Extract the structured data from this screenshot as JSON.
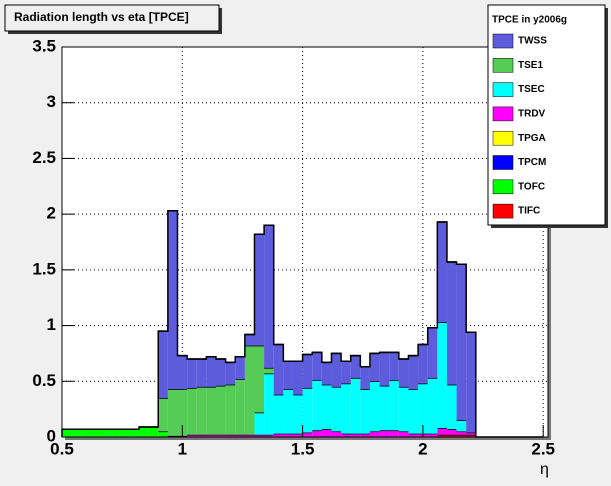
{
  "chart_data": {
    "type": "stacked-histogram",
    "title": "Radiation length vs eta [TPCE]",
    "legend_title": "TPCE in y2006g",
    "x_label": "η",
    "bins": [
      0.5,
      0.54,
      0.58,
      0.62,
      0.66,
      0.7,
      0.74,
      0.78,
      0.82,
      0.86,
      0.9,
      0.94,
      0.98,
      1.02,
      1.06,
      1.1,
      1.14,
      1.18,
      1.22,
      1.26,
      1.3,
      1.34,
      1.38,
      1.42,
      1.46,
      1.5,
      1.54,
      1.58,
      1.62,
      1.66,
      1.7,
      1.74,
      1.78,
      1.82,
      1.86,
      1.9,
      1.94,
      1.98,
      2.02,
      2.06,
      2.1,
      2.14,
      2.18,
      2.22,
      2.26,
      2.3,
      2.34,
      2.38,
      2.42,
      2.46,
      2.5
    ],
    "series": [
      {
        "name": "TWSS",
        "color": "#5c5cdc",
        "values": [
          0,
          0,
          0,
          0,
          0,
          0,
          0,
          0,
          0,
          0,
          0.6,
          1.6,
          0.3,
          0.26,
          0.25,
          0.27,
          0.24,
          0.2,
          0.2,
          0.1,
          1.0,
          1.28,
          0.45,
          0.25,
          0.3,
          0.3,
          0.25,
          0.2,
          0.3,
          0.2,
          0.2,
          0.2,
          0.25,
          0.3,
          0.25,
          0.25,
          0.3,
          0.35,
          0.45,
          0.9,
          1.1,
          1.4,
          0.9,
          0,
          0,
          0,
          0,
          0,
          0,
          0
        ]
      },
      {
        "name": "TSE1",
        "color": "#55cc55",
        "values": [
          0,
          0,
          0,
          0,
          0,
          0,
          0,
          0,
          0,
          0,
          0.3,
          0.42,
          0.42,
          0.42,
          0.43,
          0.43,
          0.44,
          0.45,
          0.5,
          0.8,
          0.6,
          0.05,
          0,
          0,
          0,
          0,
          0,
          0,
          0,
          0,
          0,
          0,
          0,
          0,
          0,
          0,
          0,
          0,
          0,
          0,
          0,
          0,
          0,
          0,
          0,
          0,
          0,
          0,
          0,
          0
        ]
      },
      {
        "name": "TSEC",
        "color": "#00ffff",
        "values": [
          0,
          0,
          0,
          0,
          0,
          0,
          0,
          0,
          0,
          0,
          0,
          0,
          0,
          0,
          0,
          0,
          0,
          0,
          0,
          0,
          0.2,
          0.55,
          0.35,
          0.4,
          0.35,
          0.4,
          0.45,
          0.4,
          0.4,
          0.45,
          0.5,
          0.4,
          0.45,
          0.4,
          0.45,
          0.4,
          0.4,
          0.45,
          0.5,
          0.95,
          0.4,
          0.1,
          0,
          0,
          0,
          0,
          0,
          0,
          0,
          0
        ]
      },
      {
        "name": "TRDV",
        "color": "#ff00ff",
        "values": [
          0,
          0,
          0,
          0,
          0,
          0,
          0,
          0,
          0,
          0,
          0,
          0.01,
          0.01,
          0.02,
          0.02,
          0.02,
          0.02,
          0.02,
          0.02,
          0.02,
          0.02,
          0.02,
          0.03,
          0.03,
          0.03,
          0.04,
          0.06,
          0.07,
          0.05,
          0.03,
          0.03,
          0.03,
          0.05,
          0.06,
          0.06,
          0.05,
          0.03,
          0.03,
          0.03,
          0.06,
          0.05,
          0.03,
          0.02,
          0,
          0,
          0,
          0,
          0,
          0,
          0
        ]
      },
      {
        "name": "TPGA",
        "color": "#ffff00",
        "values": [
          0,
          0,
          0,
          0,
          0,
          0,
          0,
          0,
          0,
          0,
          0,
          0,
          0,
          0,
          0,
          0,
          0,
          0,
          0,
          0,
          0,
          0,
          0,
          0,
          0,
          0,
          0,
          0,
          0,
          0,
          0,
          0,
          0,
          0,
          0,
          0,
          0,
          0,
          0,
          0,
          0,
          0,
          0,
          0,
          0,
          0,
          0,
          0,
          0,
          0
        ]
      },
      {
        "name": "TPCM",
        "color": "#0000ff",
        "values": [
          0,
          0,
          0,
          0,
          0,
          0,
          0,
          0,
          0,
          0,
          0,
          0,
          0,
          0,
          0,
          0,
          0,
          0,
          0,
          0,
          0,
          0,
          0,
          0,
          0,
          0,
          0,
          0,
          0,
          0,
          0,
          0,
          0,
          0,
          0,
          0,
          0,
          0,
          0,
          0,
          0,
          0,
          0,
          0,
          0,
          0,
          0,
          0,
          0,
          0
        ]
      },
      {
        "name": "TOFC",
        "color": "#00ff00",
        "values": [
          0.07,
          0.07,
          0.07,
          0.07,
          0.07,
          0.07,
          0.07,
          0.07,
          0.09,
          0.09,
          0.05,
          0,
          0,
          0,
          0,
          0,
          0,
          0,
          0,
          0,
          0,
          0,
          0,
          0,
          0,
          0,
          0,
          0,
          0,
          0,
          0,
          0,
          0,
          0,
          0,
          0,
          0,
          0,
          0,
          0,
          0,
          0,
          0,
          0,
          0,
          0,
          0,
          0,
          0,
          0
        ]
      },
      {
        "name": "TIFC",
        "color": "#ff0000",
        "values": [
          0,
          0,
          0,
          0,
          0,
          0,
          0,
          0,
          0,
          0,
          0,
          0,
          0,
          0,
          0,
          0,
          0,
          0,
          0,
          0,
          0,
          0,
          0,
          0,
          0,
          0,
          0,
          0,
          0,
          0,
          0,
          0,
          0,
          0,
          0,
          0,
          0,
          0,
          0,
          0.02,
          0.02,
          0.02,
          0.02,
          0,
          0,
          0,
          0,
          0,
          0,
          0
        ]
      }
    ],
    "xlim": [
      0.5,
      2.52
    ],
    "ylim": [
      0,
      3.5
    ],
    "xticks": [
      0.5,
      1,
      1.5,
      2,
      2.5
    ],
    "yticks": [
      0,
      0.5,
      1,
      1.5,
      2,
      2.5,
      3,
      3.5
    ],
    "grid": true
  }
}
